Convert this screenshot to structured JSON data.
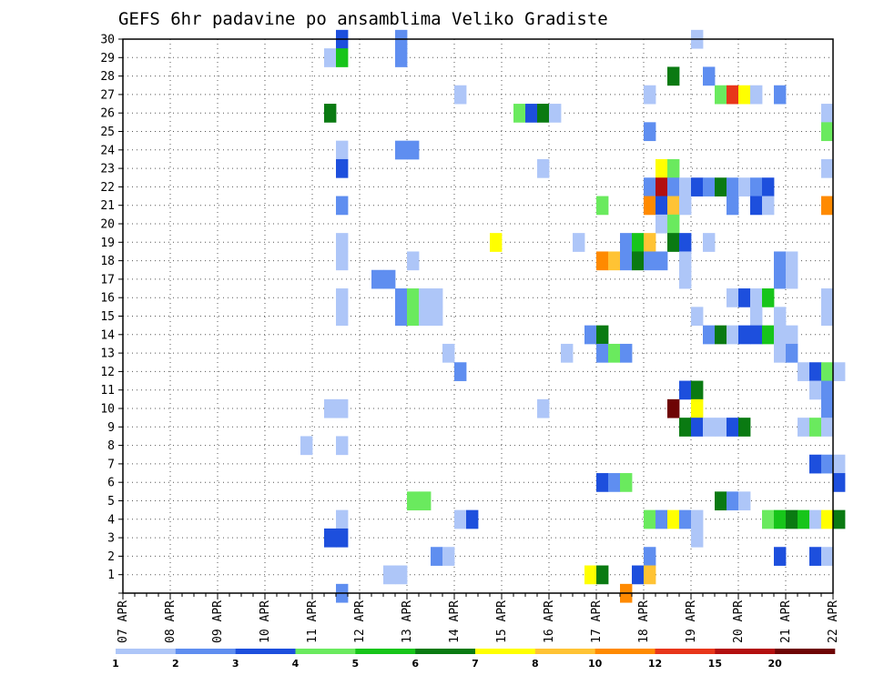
{
  "chart_data": {
    "type": "heatmap",
    "title": "GEFS 6hr padavine po ansamblima Veliko Gradiste",
    "x_tick_labels": [
      "07 APR",
      "08 APR",
      "09 APR",
      "10 APR",
      "11 APR",
      "12 APR",
      "13 APR",
      "14 APR",
      "15 APR",
      "16 APR",
      "17 APR",
      "18 APR",
      "19 APR",
      "20 APR",
      "21 APR",
      "22 APR"
    ],
    "y_tick_labels": [
      "1",
      "2",
      "3",
      "4",
      "5",
      "6",
      "7",
      "8",
      "9",
      "10",
      "11",
      "12",
      "13",
      "14",
      "15",
      "16",
      "17",
      "18",
      "19",
      "20",
      "21",
      "22",
      "23",
      "24",
      "25",
      "26",
      "27",
      "28",
      "29",
      "30"
    ],
    "xlim": [
      "07 APR 00",
      "22 APR 00"
    ],
    "ylim": [
      0,
      30
    ],
    "x_step": "6hr",
    "grid": true,
    "colorbar": {
      "placement": "bottom",
      "labels": [
        "1",
        "2",
        "3",
        "4",
        "5",
        "6",
        "7",
        "8",
        "10",
        "12",
        "15",
        "20"
      ],
      "colors": [
        "#aec6f8",
        "#5f8ef0",
        "#1d4fdd",
        "#6aea5e",
        "#17c51a",
        "#0a7a12",
        "#ffff00",
        "#ffc334",
        "#ff8a00",
        "#e8361a",
        "#b30f0f",
        "#6e0404"
      ]
    },
    "cells_note": "each cell: [member, forecast day (07 APR = 0), 6hr step index 0-3, color class index 0-11]",
    "cells": [
      [
        30,
        4,
        2,
        2
      ],
      [
        30,
        5,
        3,
        1
      ],
      [
        30,
        12,
        0,
        0
      ],
      [
        29,
        4,
        1,
        0
      ],
      [
        29,
        4,
        2,
        4
      ],
      [
        29,
        5,
        3,
        1
      ],
      [
        28,
        11,
        2,
        5
      ],
      [
        28,
        12,
        1,
        1
      ],
      [
        27,
        7,
        0,
        0
      ],
      [
        27,
        11,
        0,
        0
      ],
      [
        27,
        12,
        2,
        3
      ],
      [
        27,
        12,
        3,
        9
      ],
      [
        27,
        13,
        0,
        6
      ],
      [
        27,
        13,
        1,
        0
      ],
      [
        27,
        13,
        3,
        1
      ],
      [
        26,
        4,
        1,
        5
      ],
      [
        26,
        8,
        1,
        3
      ],
      [
        26,
        8,
        2,
        2
      ],
      [
        26,
        8,
        3,
        5
      ],
      [
        26,
        9,
        0,
        0
      ],
      [
        26,
        14,
        3,
        0
      ],
      [
        25,
        11,
        0,
        1
      ],
      [
        25,
        14,
        3,
        3
      ],
      [
        24,
        4,
        2,
        0
      ],
      [
        24,
        5,
        3,
        1
      ],
      [
        24,
        6,
        0,
        1
      ],
      [
        23,
        4,
        2,
        2
      ],
      [
        23,
        8,
        3,
        0
      ],
      [
        23,
        11,
        1,
        6
      ],
      [
        23,
        11,
        2,
        3
      ],
      [
        23,
        14,
        3,
        0
      ],
      [
        22,
        11,
        0,
        1
      ],
      [
        22,
        11,
        1,
        10
      ],
      [
        22,
        11,
        2,
        1
      ],
      [
        22,
        11,
        3,
        0
      ],
      [
        22,
        12,
        0,
        2
      ],
      [
        22,
        12,
        1,
        1
      ],
      [
        22,
        12,
        2,
        5
      ],
      [
        22,
        12,
        3,
        1
      ],
      [
        22,
        13,
        0,
        0
      ],
      [
        22,
        13,
        1,
        1
      ],
      [
        22,
        13,
        2,
        2
      ],
      [
        21,
        4,
        2,
        1
      ],
      [
        21,
        10,
        0,
        3
      ],
      [
        21,
        11,
        0,
        8
      ],
      [
        21,
        11,
        1,
        2
      ],
      [
        21,
        11,
        2,
        7
      ],
      [
        21,
        11,
        3,
        0
      ],
      [
        21,
        12,
        3,
        1
      ],
      [
        21,
        13,
        1,
        2
      ],
      [
        21,
        13,
        2,
        0
      ],
      [
        21,
        14,
        3,
        8
      ],
      [
        20,
        11,
        1,
        0
      ],
      [
        20,
        11,
        2,
        3
      ],
      [
        19,
        4,
        2,
        0
      ],
      [
        19,
        7,
        3,
        6
      ],
      [
        19,
        9,
        2,
        0
      ],
      [
        19,
        10,
        2,
        1
      ],
      [
        19,
        10,
        3,
        4
      ],
      [
        19,
        11,
        0,
        7
      ],
      [
        19,
        11,
        2,
        5
      ],
      [
        19,
        11,
        3,
        2
      ],
      [
        19,
        12,
        1,
        0
      ],
      [
        18,
        4,
        2,
        0
      ],
      [
        18,
        6,
        0,
        0
      ],
      [
        18,
        10,
        0,
        8
      ],
      [
        18,
        10,
        1,
        7
      ],
      [
        18,
        10,
        2,
        1
      ],
      [
        18,
        10,
        3,
        5
      ],
      [
        18,
        11,
        0,
        1
      ],
      [
        18,
        11,
        1,
        1
      ],
      [
        18,
        11,
        3,
        0
      ],
      [
        18,
        13,
        3,
        1
      ],
      [
        18,
        14,
        0,
        0
      ],
      [
        17,
        5,
        1,
        1
      ],
      [
        17,
        5,
        2,
        1
      ],
      [
        17,
        11,
        3,
        0
      ],
      [
        17,
        13,
        3,
        1
      ],
      [
        17,
        14,
        0,
        0
      ],
      [
        16,
        4,
        2,
        0
      ],
      [
        16,
        5,
        3,
        1
      ],
      [
        16,
        6,
        0,
        3
      ],
      [
        16,
        6,
        1,
        0
      ],
      [
        16,
        6,
        2,
        0
      ],
      [
        16,
        12,
        3,
        0
      ],
      [
        16,
        13,
        0,
        2
      ],
      [
        16,
        13,
        1,
        0
      ],
      [
        16,
        13,
        2,
        4
      ],
      [
        16,
        14,
        3,
        0
      ],
      [
        15,
        4,
        2,
        0
      ],
      [
        15,
        5,
        3,
        1
      ],
      [
        15,
        6,
        0,
        3
      ],
      [
        15,
        6,
        1,
        0
      ],
      [
        15,
        6,
        2,
        0
      ],
      [
        15,
        12,
        0,
        0
      ],
      [
        15,
        13,
        1,
        0
      ],
      [
        15,
        13,
        3,
        0
      ],
      [
        15,
        14,
        3,
        0
      ],
      [
        14,
        9,
        3,
        1
      ],
      [
        14,
        10,
        0,
        5
      ],
      [
        14,
        12,
        1,
        1
      ],
      [
        14,
        12,
        2,
        5
      ],
      [
        14,
        12,
        3,
        0
      ],
      [
        14,
        13,
        0,
        2
      ],
      [
        14,
        13,
        1,
        2
      ],
      [
        14,
        13,
        2,
        4
      ],
      [
        14,
        13,
        3,
        0
      ],
      [
        14,
        14,
        0,
        0
      ],
      [
        13,
        6,
        3,
        0
      ],
      [
        13,
        9,
        1,
        0
      ],
      [
        13,
        10,
        0,
        1
      ],
      [
        13,
        10,
        1,
        3
      ],
      [
        13,
        10,
        2,
        1
      ],
      [
        13,
        13,
        3,
        0
      ],
      [
        13,
        14,
        0,
        1
      ],
      [
        12,
        7,
        0,
        1
      ],
      [
        12,
        14,
        1,
        0
      ],
      [
        12,
        14,
        2,
        2
      ],
      [
        12,
        14,
        3,
        3
      ],
      [
        12,
        15,
        0,
        0
      ],
      [
        11,
        11,
        3,
        2
      ],
      [
        11,
        12,
        0,
        5
      ],
      [
        11,
        14,
        2,
        0
      ],
      [
        11,
        14,
        3,
        1
      ],
      [
        10,
        4,
        1,
        0
      ],
      [
        10,
        4,
        2,
        0
      ],
      [
        10,
        8,
        3,
        0
      ],
      [
        10,
        11,
        2,
        11
      ],
      [
        10,
        12,
        0,
        6
      ],
      [
        10,
        14,
        3,
        1
      ],
      [
        9,
        11,
        3,
        5
      ],
      [
        9,
        12,
        0,
        2
      ],
      [
        9,
        12,
        1,
        0
      ],
      [
        9,
        12,
        2,
        0
      ],
      [
        9,
        12,
        3,
        2
      ],
      [
        9,
        13,
        0,
        5
      ],
      [
        9,
        14,
        1,
        0
      ],
      [
        9,
        14,
        2,
        3
      ],
      [
        9,
        14,
        3,
        0
      ],
      [
        8,
        3,
        3,
        0
      ],
      [
        8,
        4,
        2,
        0
      ],
      [
        7,
        14,
        2,
        2
      ],
      [
        7,
        14,
        3,
        1
      ],
      [
        7,
        15,
        0,
        0
      ],
      [
        6,
        10,
        0,
        2
      ],
      [
        6,
        10,
        1,
        1
      ],
      [
        6,
        10,
        2,
        3
      ],
      [
        6,
        15,
        0,
        2
      ],
      [
        5,
        6,
        0,
        3
      ],
      [
        5,
        6,
        1,
        3
      ],
      [
        5,
        12,
        2,
        5
      ],
      [
        5,
        12,
        3,
        1
      ],
      [
        5,
        13,
        0,
        0
      ],
      [
        4,
        4,
        2,
        0
      ],
      [
        4,
        7,
        0,
        0
      ],
      [
        4,
        7,
        1,
        2
      ],
      [
        4,
        11,
        0,
        3
      ],
      [
        4,
        11,
        1,
        1
      ],
      [
        4,
        11,
        2,
        6
      ],
      [
        4,
        11,
        3,
        1
      ],
      [
        4,
        12,
        0,
        0
      ],
      [
        4,
        13,
        2,
        3
      ],
      [
        4,
        13,
        3,
        4
      ],
      [
        4,
        14,
        0,
        5
      ],
      [
        4,
        14,
        1,
        4
      ],
      [
        4,
        14,
        2,
        0
      ],
      [
        4,
        14,
        3,
        6
      ],
      [
        4,
        15,
        0,
        5
      ],
      [
        3,
        4,
        1,
        2
      ],
      [
        3,
        4,
        2,
        2
      ],
      [
        3,
        12,
        0,
        0
      ],
      [
        2,
        6,
        2,
        1
      ],
      [
        2,
        6,
        3,
        0
      ],
      [
        2,
        11,
        0,
        1
      ],
      [
        2,
        13,
        3,
        2
      ],
      [
        2,
        14,
        2,
        2
      ],
      [
        2,
        14,
        3,
        0
      ],
      [
        1,
        5,
        2,
        0
      ],
      [
        1,
        5,
        3,
        0
      ],
      [
        1,
        9,
        3,
        6
      ],
      [
        1,
        10,
        0,
        5
      ],
      [
        1,
        10,
        3,
        2
      ],
      [
        1,
        11,
        0,
        7
      ],
      [
        0,
        4,
        2,
        1
      ],
      [
        0,
        10,
        2,
        8
      ]
    ]
  }
}
